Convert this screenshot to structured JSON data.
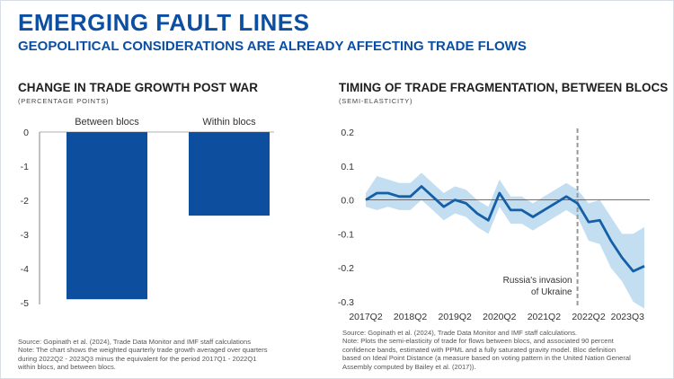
{
  "header": {
    "title": "EMERGING FAULT LINES",
    "subtitle": "GEOPOLITICAL CONSIDERATIONS ARE ALREADY AFFECTING TRADE FLOWS"
  },
  "left": {
    "title": "CHANGE IN TRADE GROWTH POST WAR",
    "subtitle": "(PERCENTAGE POINTS)",
    "notes": [
      "Source: Gopinath et al. (2024), Trade Data Monitor and IMF staff calculations",
      "Note: The chart shows the weighted quarterly trade growth averaged over quarters",
      "during 2022Q2 - 2023Q3 minus the equivalent for the period 2017Q1 - 2022Q1",
      "within blocs, and between blocs."
    ]
  },
  "right": {
    "title": "TIMING OF TRADE FRAGMENTATION, BETWEEN BLOCS",
    "subtitle": "(SEMI-ELASTICITY)",
    "annotation_line1": "Russia's invasion",
    "annotation_line2": "of Ukraine",
    "notes": [
      "Source: Gopinath et al. (2024), Trade Data Monitor and IMF staff calculations.",
      "Note: Plots the semi-elasticity of trade for flows between blocs, and associated 90 percent",
      "confidence bands, estimated with PPML and a fully saturated gravity model. Bloc definition",
      "based on Ideal Point Distance (a measure based on voting pattern in the United Nation General",
      "Assembly computed by Bailey et al. (2017))."
    ]
  },
  "colors": {
    "accent": "#0b4ea2",
    "bar": "#0d4e9e",
    "line": "#155fa6",
    "band": "#b9d8ee"
  },
  "chart_data": [
    {
      "type": "bar",
      "categories": [
        "Between blocs",
        "Within blocs"
      ],
      "values": [
        -4.9,
        -2.45
      ],
      "ylim": [
        -5,
        0
      ],
      "yticks": [
        0,
        -1,
        -2,
        -3,
        -4,
        -5
      ],
      "grid": false
    },
    {
      "type": "line",
      "x": [
        "2017Q2",
        "2017Q3",
        "2017Q4",
        "2018Q1",
        "2018Q2",
        "2018Q3",
        "2018Q4",
        "2019Q1",
        "2019Q2",
        "2019Q3",
        "2019Q4",
        "2020Q1",
        "2020Q2",
        "2020Q3",
        "2020Q4",
        "2021Q1",
        "2021Q2",
        "2021Q3",
        "2021Q4",
        "2022Q1",
        "2022Q2",
        "2022Q3",
        "2022Q4",
        "2023Q1",
        "2023Q2",
        "2023Q3"
      ],
      "series": [
        {
          "values": [
            0.0,
            0.02,
            0.02,
            0.01,
            0.01,
            0.04,
            0.01,
            -0.02,
            0.0,
            -0.01,
            -0.04,
            -0.06,
            0.02,
            -0.03,
            -0.03,
            -0.05,
            -0.03,
            -0.01,
            0.01,
            -0.01,
            -0.065,
            -0.06,
            -0.12,
            -0.17,
            -0.21,
            -0.195
          ]
        },
        {
          "name": "confidence band upper",
          "values": [
            0.02,
            0.07,
            0.06,
            0.05,
            0.05,
            0.08,
            0.05,
            0.02,
            0.04,
            0.03,
            0.0,
            -0.02,
            0.06,
            0.01,
            0.01,
            -0.01,
            0.01,
            0.03,
            0.05,
            0.03,
            -0.01,
            0.0,
            -0.05,
            -0.1,
            -0.1,
            -0.08
          ]
        },
        {
          "name": "confidence band lower",
          "values": [
            -0.02,
            -0.03,
            -0.02,
            -0.03,
            -0.03,
            0.0,
            -0.03,
            -0.06,
            -0.04,
            -0.05,
            -0.08,
            -0.1,
            -0.02,
            -0.07,
            -0.07,
            -0.09,
            -0.07,
            -0.05,
            -0.03,
            -0.05,
            -0.12,
            -0.13,
            -0.2,
            -0.24,
            -0.3,
            -0.32
          ]
        }
      ],
      "xtick_labels": [
        "2017Q2",
        "2018Q2",
        "2019Q2",
        "2020Q2",
        "2021Q2",
        "2022Q2",
        "2023Q3"
      ],
      "ylim": [
        -0.3,
        0.2
      ],
      "yticks": [
        0.2,
        0.1,
        0.0,
        -0.1,
        -0.2,
        -0.3
      ],
      "yticklabels": [
        "0.2",
        "0.1",
        "0.0",
        "-0.1",
        "-0.2",
        "-0.3"
      ],
      "vline_at": "2022Q1",
      "grid": false
    }
  ]
}
